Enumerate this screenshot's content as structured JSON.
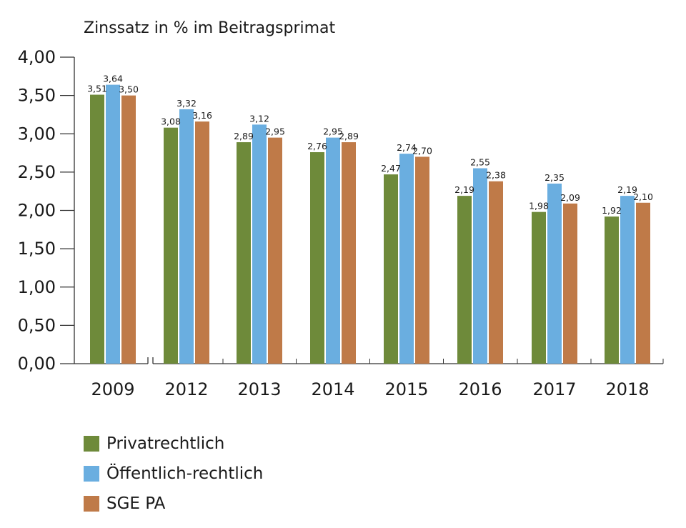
{
  "chart_data": {
    "type": "bar",
    "title": "Zinssatz in % im Beitragsprimat",
    "xlabel": "",
    "ylabel": "",
    "ylim": [
      0,
      4
    ],
    "yticks": [
      0,
      0.5,
      1,
      1.5,
      2,
      2.5,
      3,
      3.5,
      4
    ],
    "ytick_labels": [
      "0,00",
      "0,50",
      "1,00",
      "1,50",
      "2,00",
      "2,50",
      "3,00",
      "3,50",
      "4,00"
    ],
    "categories": [
      "2009",
      "2012",
      "2013",
      "2014",
      "2015",
      "2016",
      "2017",
      "2018"
    ],
    "axis_break_after": "2009",
    "grid": false,
    "legend_position": "bottom-left",
    "series": [
      {
        "name": "Privatrechtlich",
        "color": "#6e8a3a",
        "values": [
          3.51,
          3.08,
          2.89,
          2.76,
          2.47,
          2.19,
          1.98,
          1.92
        ],
        "labels": [
          "3,51",
          "3,08",
          "2,89",
          "2,76",
          "2,47",
          "2,19",
          "1,98",
          "1,92"
        ]
      },
      {
        "name": "Öffentlich-rechtlich",
        "color": "#6aaee0",
        "values": [
          3.64,
          3.32,
          3.12,
          2.95,
          2.74,
          2.55,
          2.35,
          2.19
        ],
        "labels": [
          "3,64",
          "3,32",
          "3,12",
          "2,95",
          "2,74",
          "2,55",
          "2,35",
          "2,19"
        ]
      },
      {
        "name": "SGE PA",
        "color": "#bf7a48",
        "values": [
          3.5,
          3.16,
          2.95,
          2.89,
          2.7,
          2.38,
          2.09,
          2.1
        ],
        "labels": [
          "3,50",
          "3,16",
          "2,95",
          "2,89",
          "2,70",
          "2,38",
          "2,09",
          "2,10"
        ]
      }
    ]
  },
  "legend": {
    "items": [
      {
        "label": "Privatrechtlich",
        "color": "#6e8a3a"
      },
      {
        "label": "Öffentlich-rechtlich",
        "color": "#6aaee0"
      },
      {
        "label": "SGE PA",
        "color": "#bf7a48"
      }
    ]
  }
}
